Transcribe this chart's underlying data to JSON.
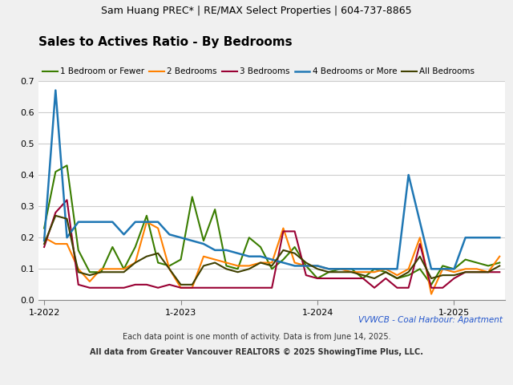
{
  "header": "Sam Huang PREC* | RE/MAX Select Properties | 604-737-8865",
  "title": "Sales to Actives Ratio - By Bedrooms",
  "subtitle": "VVWCB - Coal Harbour: Apartment",
  "footnote1": "Each data point is one month of activity. Data is from June 14, 2025.",
  "footnote2": "All data from Greater Vancouver REALTORS © 2025 ShowingTime Plus, LLC.",
  "x_labels": [
    "1-2022",
    "1-2023",
    "1-2024",
    "1-2025"
  ],
  "xtick_positions": [
    0,
    12,
    24,
    36
  ],
  "ylim": [
    0.0,
    0.7
  ],
  "yticks": [
    0.0,
    0.1,
    0.2,
    0.3,
    0.4,
    0.5,
    0.6,
    0.7
  ],
  "series": {
    "1 Bedroom or Fewer": {
      "color": "#3a7d00",
      "linewidth": 1.5,
      "values": [
        0.23,
        0.41,
        0.43,
        0.16,
        0.09,
        0.09,
        0.17,
        0.1,
        0.17,
        0.27,
        0.12,
        0.11,
        0.13,
        0.33,
        0.19,
        0.29,
        0.11,
        0.1,
        0.2,
        0.17,
        0.1,
        0.13,
        0.17,
        0.11,
        0.07,
        0.09,
        0.1,
        0.1,
        0.07,
        0.1,
        0.09,
        0.07,
        0.08,
        0.1,
        0.05,
        0.11,
        0.1,
        0.13,
        0.12,
        0.11,
        0.12
      ]
    },
    "2 Bedrooms": {
      "color": "#ff8000",
      "linewidth": 1.5,
      "values": [
        0.2,
        0.18,
        0.18,
        0.1,
        0.06,
        0.1,
        0.1,
        0.1,
        0.12,
        0.25,
        0.23,
        0.1,
        0.04,
        0.04,
        0.14,
        0.13,
        0.12,
        0.11,
        0.11,
        0.12,
        0.12,
        0.23,
        0.12,
        0.11,
        0.11,
        0.1,
        0.1,
        0.09,
        0.09,
        0.09,
        0.1,
        0.08,
        0.1,
        0.2,
        0.02,
        0.1,
        0.09,
        0.1,
        0.1,
        0.09,
        0.14
      ]
    },
    "3 Bedrooms": {
      "color": "#990033",
      "linewidth": 1.5,
      "values": [
        0.17,
        0.28,
        0.32,
        0.05,
        0.04,
        0.04,
        0.04,
        0.04,
        0.05,
        0.05,
        0.04,
        0.05,
        0.04,
        0.04,
        0.04,
        0.04,
        0.04,
        0.04,
        0.04,
        0.04,
        0.04,
        0.22,
        0.22,
        0.08,
        0.07,
        0.07,
        0.07,
        0.07,
        0.07,
        0.04,
        0.07,
        0.04,
        0.04,
        0.18,
        0.04,
        0.04,
        0.07,
        0.09,
        0.09,
        0.09,
        0.09
      ]
    },
    "4 Bedrooms or More": {
      "color": "#1f77b4",
      "linewidth": 1.8,
      "values": [
        0.19,
        0.67,
        0.2,
        0.25,
        0.25,
        0.25,
        0.25,
        0.21,
        0.25,
        0.25,
        0.25,
        0.21,
        0.2,
        0.19,
        0.18,
        0.16,
        0.16,
        0.15,
        0.14,
        0.14,
        0.13,
        0.12,
        0.11,
        0.11,
        0.11,
        0.1,
        0.1,
        0.1,
        0.1,
        0.1,
        0.1,
        0.1,
        0.4,
        0.25,
        0.1,
        0.1,
        0.1,
        0.2,
        0.2,
        0.2,
        0.2
      ]
    },
    "All Bedrooms": {
      "color": "#404000",
      "linewidth": 1.5,
      "values": [
        0.18,
        0.27,
        0.26,
        0.09,
        0.08,
        0.09,
        0.09,
        0.09,
        0.12,
        0.14,
        0.15,
        0.1,
        0.05,
        0.05,
        0.11,
        0.12,
        0.1,
        0.09,
        0.1,
        0.12,
        0.11,
        0.16,
        0.15,
        0.12,
        0.1,
        0.09,
        0.09,
        0.09,
        0.08,
        0.07,
        0.09,
        0.07,
        0.09,
        0.14,
        0.07,
        0.08,
        0.08,
        0.09,
        0.09,
        0.09,
        0.11
      ]
    }
  },
  "n_points": 41,
  "fig_bg_color": "#f0f0f0",
  "plot_bg_color": "#ffffff",
  "header_bg_color": "#d3d3d3",
  "grid_color": "#cccccc",
  "header_fontsize": 9,
  "title_fontsize": 11,
  "legend_fontsize": 7.5,
  "tick_fontsize": 8,
  "footnote_fontsize": 7,
  "subtitle_fontsize": 7.5,
  "subtitle_color": "#2255cc"
}
